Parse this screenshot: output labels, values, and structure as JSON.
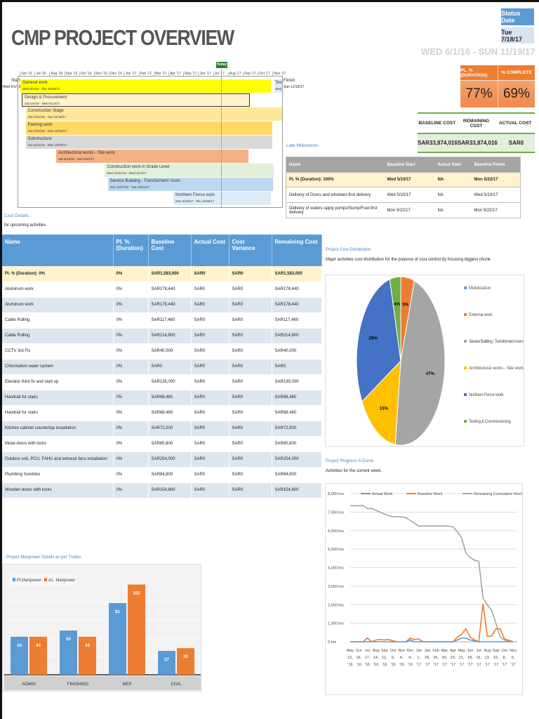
{
  "title": "CMP PROJECT OVERVIEW",
  "status": {
    "label": "Status Date",
    "value": "Tue 7/18/17"
  },
  "date_range": "WED 6/1/16  -  SUN 11/19/17",
  "kpis": [
    {
      "label": "PL. % (DURATION)",
      "value": "77%"
    },
    {
      "label": "% COMPLETE",
      "value": "69%"
    }
  ],
  "cost_summary": {
    "headers": [
      "BASELINE COST",
      "REMAINING COST",
      "ACTUAL COST"
    ],
    "values": [
      "SAR33,874,016",
      "SAR33,874,016",
      "SAR0"
    ]
  },
  "gantt": {
    "start_label": "Start",
    "start_date": "Wed 6/1/16",
    "finish_label": "Finish",
    "finish_date": "Sun 11/19/17",
    "today_label": "Today",
    "today": "2017-07-18",
    "months": [
      "Jun '16",
      "Jul '16",
      "Aug '16",
      "Sep '16",
      "Oct '16",
      "Nov '16",
      "Dec '16",
      "Jan '17",
      "Feb '17",
      "Mar '17",
      "Apr '17",
      "May '17",
      "Jun '17",
      "Jul '17",
      "Aug '17",
      "Sep '17",
      "Oct '17",
      "Nov '17"
    ],
    "tasks": [
      {
        "name": "General work",
        "dates": "Wed 6/1/16 - Thu 10/26/17",
        "start": "2016-06-01",
        "end": "2017-10-26",
        "color": "#ffff00"
      },
      {
        "name": "Design & Procurement",
        "dates": "Sat 6/4/16 - Wed 9/13/17",
        "start": "2016-06-04",
        "end": "2017-09-13",
        "color": "#fff2cc",
        "outlined": true
      },
      {
        "name": "Construction Stage",
        "dates": "Sun 6/12/16 - Sun 11/19/17",
        "start": "2016-06-12",
        "end": "2017-11-19",
        "color": "#ffe699"
      },
      {
        "name": "Parking work",
        "dates": "Sun 6/12/16 - Mon 10/30/17",
        "start": "2016-06-12",
        "end": "2017-10-30",
        "color": "#ffd966"
      },
      {
        "name": "Substructure",
        "dates": "Sun 6/12/16 - Mon 10/30/17",
        "start": "2016-06-12",
        "end": "2017-10-30",
        "color": "#d9d9d9"
      },
      {
        "name": "Architectural works - Site work",
        "dates": "Sat 8/13/16 - Sun 9/10/17",
        "start": "2016-08-13",
        "end": "2017-09-10",
        "color": "#f4b183"
      },
      {
        "name": "Construction work in Grade Level",
        "dates": "Mon 11/21/16 - Wed 11/1/17",
        "start": "2016-11-21",
        "end": "2017-11-01",
        "color": "#e2efda"
      },
      {
        "name": "Service Building - Transformers' room",
        "dates": "Sun 11/27/16 - Tue 10/31/17",
        "start": "2016-11-27",
        "end": "2017-10-31",
        "color": "#bdd7ee"
      },
      {
        "name": "Northern Fence work",
        "dates": "Mon 4/10/17 - Thu 10/26/17",
        "start": "2017-04-10",
        "end": "2017-10-26",
        "color": "#deebf7"
      }
    ],
    "testing": {
      "name": "Testi",
      "dates": "Wed"
    }
  },
  "milestones": {
    "title": "Late Milestones",
    "headers": [
      "Name",
      "Baseline Start",
      "Actual Start",
      "Baseline Finish"
    ],
    "rows": [
      [
        "Pl. % (Duration): 100%",
        "Wed 5/10/17",
        "NA",
        "Mon 5/22/17"
      ],
      [
        "Delivery of Doors and windows-first delivery",
        "Wed 5/10/17",
        "NA",
        "Wed 5/10/17"
      ],
      [
        "Delivery of waters upply pumps/Sump/Fuel-first delivery",
        "Mon 5/22/17",
        "NA",
        "Mon 5/22/17"
      ]
    ]
  },
  "cost_details": {
    "title": "Cost Details :",
    "subtitle": "for upcoming activities",
    "headers": [
      "Name",
      "Pl. % (Duration)",
      "Baseline Cost",
      "Actual Cost",
      "Cost Variance",
      "Remaining Cost"
    ],
    "rows": [
      [
        "Pl. % (Duration): 0%",
        "0%",
        "SAR1,583,000",
        "SAR0",
        "SAR0",
        "SAR1,583,000"
      ],
      [
        "Aluminum work",
        "0%",
        "SAR178,440",
        "SAR0",
        "SAR0",
        "SAR178,440"
      ],
      [
        "Aluminum work",
        "0%",
        "SAR178,440",
        "SAR0",
        "SAR0",
        "SAR178,440"
      ],
      [
        "Cable Pulling",
        "0%",
        "SAR117,460",
        "SAR0",
        "SAR0",
        "SAR117,460"
      ],
      [
        "Cable Pulling",
        "0%",
        "SAR214,800",
        "SAR0",
        "SAR0",
        "SAR214,800"
      ],
      [
        "CCTV 3rd Fix",
        "0%",
        "SAR40,000",
        "SAR0",
        "SAR0",
        "SAR40,000"
      ],
      [
        "Chlorination water system",
        "0%",
        "SAR0",
        "SAR0",
        "SAR0",
        "SAR0"
      ],
      [
        "Elevator third fix and start up",
        "0%",
        "SAR135,000",
        "SAR0",
        "SAR0",
        "SAR135,000"
      ],
      [
        "Handrail for stairs",
        "0%",
        "SAR68,480",
        "SAR0",
        "SAR0",
        "SAR68,480"
      ],
      [
        "Handrail for stairs",
        "0%",
        "SAR68,480",
        "SAR0",
        "SAR0",
        "SAR68,480"
      ],
      [
        "Kitchen cabinet countertop installation",
        "0%",
        "SAR72,500",
        "SAR0",
        "SAR0",
        "SAR72,500"
      ],
      [
        "Metal doors with locks",
        "0%",
        "SAR65,800",
        "SAR0",
        "SAR0",
        "SAR65,800"
      ],
      [
        "Outdoor unit, PCU, FAHU and exhaust fans installation",
        "0%",
        "SAR254,000",
        "SAR0",
        "SAR0",
        "SAR254,000"
      ],
      [
        "Plumbing Sundries",
        "0%",
        "SAR84,800",
        "SAR0",
        "SAR0",
        "SAR84,800"
      ],
      [
        "Wooden doors with locks",
        "0%",
        "SAR154,800",
        "SAR0",
        "SAR0",
        "SAR154,800"
      ]
    ]
  },
  "chart_data": [
    {
      "type": "pie",
      "title": "Project Cost Distribution",
      "subtitle": "Major activities cost distribution for the purpose of cost control by focusing biggest chunk",
      "legend": "right",
      "categories": [
        "Mobilization",
        "External work",
        "Service Building - Transformers' room",
        "Architectural works - Site work",
        "Northern Fence work",
        "Testing & Commissioning"
      ],
      "values": [
        0,
        5,
        47,
        15,
        29,
        4
      ],
      "labels": [
        "0%",
        "5%",
        "47%",
        "15%",
        "29%",
        "4%"
      ],
      "colors": [
        "#5b9bd5",
        "#ed7d31",
        "#a5a5a5",
        "#ffc000",
        "#4472c4",
        "#70ad47"
      ]
    },
    {
      "type": "line",
      "title": "Project Progress S-Curve",
      "subtitle": "Activities for the current week.",
      "legend": "top",
      "ylim": [
        0,
        8000
      ],
      "yticks": [
        "0 hrs",
        "1,000 hrs",
        "2,000 hrs",
        "3,000 hrs",
        "4,000 hrs",
        "5,000 hrs",
        "6,000 hrs",
        "7,000 hrs",
        "8,000 hrs"
      ],
      "xticks": [
        [
          "May",
          "22,",
          "'16"
        ],
        [
          "Jun",
          "19,",
          "'16"
        ],
        [
          "Jul",
          "17,",
          "'16"
        ],
        [
          "Aug",
          "14,",
          "'16"
        ],
        [
          "Sep",
          "11,",
          "'16"
        ],
        [
          "Oct",
          "9,",
          "'16"
        ],
        [
          "Nov",
          "6,",
          "'16"
        ],
        [
          "Dec",
          "4,",
          "'16"
        ],
        [
          "Jan",
          "1,",
          "'17"
        ],
        [
          "Jan",
          "29,",
          "'17"
        ],
        [
          "Feb",
          "26,",
          "'17"
        ],
        [
          "Mar",
          "26,",
          "'17"
        ],
        [
          "Apr",
          "23,",
          "'17"
        ],
        [
          "May",
          "21,",
          "'17"
        ],
        [
          "Jun",
          "18,",
          "'17"
        ],
        [
          "Jul",
          "16,",
          "'17"
        ],
        [
          "Aug",
          "13,",
          "'17"
        ],
        [
          "Sep",
          "10,",
          "'17"
        ],
        [
          "Oct",
          "8,",
          "'17"
        ],
        [
          "Nov",
          "5,",
          "'17"
        ]
      ],
      "series": [
        {
          "name": "Actual Work",
          "color": "#5b9bd5",
          "values": [
            0,
            0,
            0,
            0,
            0,
            0,
            0,
            0,
            0,
            0,
            0,
            0,
            0,
            0,
            100,
            0,
            0,
            0,
            0,
            0,
            0,
            0,
            0,
            0,
            0,
            100,
            200,
            200,
            100,
            50,
            0,
            0,
            0,
            0,
            0,
            0,
            0,
            0,
            0
          ]
        },
        {
          "name": "Baseline Work",
          "color": "#ed7d31",
          "values": [
            0,
            0,
            0,
            0,
            200,
            0,
            100,
            120,
            100,
            120,
            50,
            0,
            0,
            0,
            200,
            120,
            150,
            0,
            0,
            0,
            0,
            0,
            0,
            0,
            0,
            250,
            400,
            700,
            250,
            100,
            0,
            2050,
            300,
            300,
            700,
            700,
            150,
            80,
            0
          ]
        },
        {
          "name": "Remaining Cumulative Work",
          "color": "#a5a5a5",
          "values": [
            7350,
            7350,
            7350,
            7350,
            7200,
            7200,
            7100,
            7000,
            6900,
            6800,
            6750,
            6750,
            6750,
            6700,
            6550,
            6400,
            6250,
            6250,
            6250,
            6250,
            6250,
            6250,
            6250,
            6250,
            6200,
            5950,
            5600,
            4800,
            4550,
            4400,
            4350,
            2350,
            2000,
            1700,
            1000,
            250,
            100,
            20,
            0
          ]
        }
      ]
    },
    {
      "type": "bar",
      "title": "Project Manpower Details as per Trades",
      "legend": "top-left",
      "categories": [
        "ADMIN",
        "FINISHING",
        "MEP",
        "CIVIL"
      ],
      "series": [
        {
          "name": "Pl.Manpower",
          "color": "#5b9bd5",
          "values": [
            43,
            50,
            81,
            27
          ]
        },
        {
          "name": "Ac. Manpower",
          "color": "#ed7d31",
          "values": [
            43,
            43,
            102,
            30
          ]
        }
      ]
    }
  ]
}
